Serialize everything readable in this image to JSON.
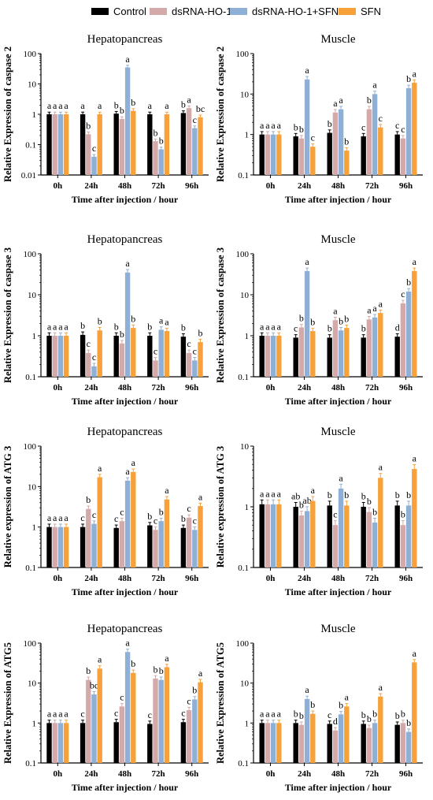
{
  "legend": {
    "items": [
      {
        "label": "Control",
        "color": "#000000"
      },
      {
        "label": "dsRNA-HO-1",
        "color": "#d4a9a9"
      },
      {
        "label": "dsRNA-HO-1+SFN",
        "color": "#8fb0d6"
      },
      {
        "label": "SFN",
        "color": "#f7a13b"
      }
    ]
  },
  "chart_data": [
    {
      "type": "bar",
      "title": "Hepatopancreas",
      "ylabel": "Relative Expression of caspase 2",
      "xlabel": "Time after injection / hour",
      "yscale": "log",
      "ylim": [
        0.01,
        100
      ],
      "yticks": [
        "0.01",
        "0.1",
        "1",
        "10",
        "100"
      ],
      "categories": [
        "0h",
        "24h",
        "48h",
        "72h",
        "96h"
      ],
      "series": [
        {
          "name": "Control",
          "values": [
            1.0,
            1.0,
            1.05,
            1.0,
            1.1
          ],
          "letters": [
            "a",
            "a",
            "b",
            "a",
            "b"
          ]
        },
        {
          "name": "dsRNA-HO-1",
          "values": [
            1.0,
            0.22,
            0.7,
            0.13,
            1.6
          ],
          "letters": [
            "a",
            "b",
            "b",
            "b",
            "a"
          ]
        },
        {
          "name": "dsRNA-HO-1+SFN",
          "values": [
            1.0,
            0.04,
            35,
            0.07,
            0.35
          ],
          "letters": [
            "a",
            "c",
            "a",
            "b",
            "c"
          ]
        },
        {
          "name": "SFN",
          "values": [
            1.0,
            1.0,
            1.3,
            1.0,
            0.8
          ],
          "letters": [
            "a",
            "a",
            "b",
            "a",
            "bc"
          ]
        }
      ]
    },
    {
      "type": "bar",
      "title": "Muscle",
      "ylabel": "Relative Expression of caspase 2",
      "xlabel": "Time after injection / hour",
      "yscale": "log",
      "ylim": [
        0.1,
        100
      ],
      "yticks": [
        "0.1",
        "1",
        "10",
        "100"
      ],
      "categories": [
        "0h",
        "24h",
        "48h",
        "72h",
        "96h"
      ],
      "series": [
        {
          "name": "Control",
          "values": [
            1.0,
            0.9,
            1.1,
            0.9,
            1.0
          ],
          "letters": [
            "a",
            "b",
            "b",
            "c",
            "c"
          ]
        },
        {
          "name": "dsRNA-HO-1",
          "values": [
            1.0,
            0.8,
            3.5,
            4.2,
            0.8
          ],
          "letters": [
            "a",
            "b",
            "a",
            "b",
            "c"
          ]
        },
        {
          "name": "dsRNA-HO-1+SFN",
          "values": [
            1.0,
            23,
            4.2,
            10,
            14
          ],
          "letters": [
            "a",
            "a",
            "a",
            "a",
            "b"
          ]
        },
        {
          "name": "SFN",
          "values": [
            1.0,
            0.5,
            0.4,
            1.5,
            19
          ],
          "letters": [
            "a",
            "c",
            "b",
            "c",
            "a"
          ]
        }
      ]
    },
    {
      "type": "bar",
      "title": "Hepatopancreas",
      "ylabel": "Relative Expression of caspase 3",
      "xlabel": "Time after injection / hour",
      "yscale": "log",
      "ylim": [
        0.1,
        100
      ],
      "yticks": [
        "0.1",
        "1",
        "10",
        "100"
      ],
      "categories": [
        "0h",
        "24h",
        "48h",
        "72h",
        "96h"
      ],
      "series": [
        {
          "name": "Control",
          "values": [
            1.0,
            1.05,
            1.0,
            1.0,
            0.95
          ],
          "letters": [
            "a",
            "b",
            "b",
            "b",
            "b"
          ]
        },
        {
          "name": "dsRNA-HO-1",
          "values": [
            1.0,
            0.38,
            0.65,
            0.25,
            0.38
          ],
          "letters": [
            "a",
            "c",
            "b",
            "c",
            "c"
          ]
        },
        {
          "name": "dsRNA-HO-1+SFN",
          "values": [
            1.0,
            0.18,
            35,
            1.4,
            0.25
          ],
          "letters": [
            "a",
            "c",
            "a",
            "a",
            "c"
          ]
        },
        {
          "name": "SFN",
          "values": [
            1.0,
            1.35,
            1.55,
            1.3,
            0.7
          ],
          "letters": [
            "a",
            "b",
            "b",
            "a",
            "b"
          ]
        }
      ]
    },
    {
      "type": "bar",
      "title": "Muscle",
      "ylabel": "Relative Expression of caspase 3",
      "xlabel": "Time after injection / hour",
      "yscale": "log",
      "ylim": [
        0.1,
        100
      ],
      "yticks": [
        "0.1",
        "1",
        "10",
        "100"
      ],
      "categories": [
        "0h",
        "24h",
        "48h",
        "72h",
        "96h"
      ],
      "series": [
        {
          "name": "Control",
          "values": [
            1.0,
            0.9,
            0.9,
            0.9,
            0.95
          ],
          "letters": [
            "a",
            "c",
            "b",
            "b",
            "d"
          ]
        },
        {
          "name": "dsRNA-HO-1",
          "values": [
            1.0,
            1.6,
            2.4,
            2.5,
            6.2
          ],
          "letters": [
            "a",
            "b",
            "a",
            "a",
            "c"
          ]
        },
        {
          "name": "dsRNA-HO-1+SFN",
          "values": [
            1.0,
            38,
            1.35,
            2.8,
            12
          ],
          "letters": [
            "a",
            "a",
            "b",
            "a",
            "b"
          ]
        },
        {
          "name": "SFN",
          "values": [
            1.0,
            1.3,
            1.55,
            3.6,
            38
          ],
          "letters": [
            "a",
            "b",
            "b",
            "a",
            "a"
          ]
        }
      ]
    },
    {
      "type": "bar",
      "title": "Hepatopancreas",
      "ylabel": "Relative expression of ATG 3",
      "xlabel": "Time after injection / hour",
      "yscale": "log",
      "ylim": [
        0.1,
        100
      ],
      "yticks": [
        "0.1",
        "1",
        "10",
        "100"
      ],
      "categories": [
        "0h",
        "24h",
        "48h",
        "72h",
        "96h"
      ],
      "series": [
        {
          "name": "Control",
          "values": [
            1.0,
            1.0,
            0.95,
            1.1,
            0.95
          ],
          "letters": [
            "a",
            "c",
            "c",
            "b",
            "b"
          ]
        },
        {
          "name": "dsRNA-HO-1",
          "values": [
            1.0,
            2.8,
            1.4,
            0.85,
            1.7
          ],
          "letters": [
            "a",
            "b",
            "c",
            "c",
            "c"
          ]
        },
        {
          "name": "dsRNA-HO-1+SFN",
          "values": [
            1.0,
            1.2,
            14,
            1.4,
            0.85
          ],
          "letters": [
            "a",
            "c",
            "a",
            "b",
            "c"
          ]
        },
        {
          "name": "SFN",
          "values": [
            1.0,
            17,
            23,
            4.8,
            3.3
          ],
          "letters": [
            "a",
            "a",
            "a",
            "a",
            "a"
          ]
        }
      ]
    },
    {
      "type": "bar",
      "title": "Muscle",
      "ylabel": "Relative expression of ATG 3",
      "xlabel": "Time after injection / hour",
      "yscale": "log",
      "ylim": [
        0.1,
        10
      ],
      "yticks": [
        "0.1",
        "1",
        "10"
      ],
      "categories": [
        "0h",
        "24h",
        "48h",
        "72h",
        "96h"
      ],
      "series": [
        {
          "name": "Control",
          "values": [
            1.1,
            1.0,
            1.05,
            1.0,
            1.05
          ],
          "letters": [
            "a",
            "ab",
            "b",
            "b",
            "b"
          ]
        },
        {
          "name": "dsRNA-HO-1",
          "values": [
            1.1,
            0.72,
            0.5,
            0.82,
            0.5
          ],
          "letters": [
            "a",
            "b",
            "c",
            "b",
            "b"
          ]
        },
        {
          "name": "dsRNA-HO-1+SFN",
          "values": [
            1.1,
            0.85,
            2.0,
            0.55,
            1.05
          ],
          "letters": [
            "a",
            "ab",
            "a",
            "b",
            "b"
          ]
        },
        {
          "name": "SFN",
          "values": [
            1.1,
            1.25,
            1.05,
            3.0,
            4.2
          ],
          "letters": [
            "a",
            "a",
            "b",
            "a",
            "a"
          ]
        }
      ]
    },
    {
      "type": "bar",
      "title": "Hepatopancreas",
      "ylabel": "Relative Expression of ATG5",
      "xlabel": "Time after injection / hour",
      "yscale": "log",
      "ylim": [
        0.1,
        100
      ],
      "yticks": [
        "0.1",
        "1",
        "10",
        "100"
      ],
      "categories": [
        "0h",
        "24h",
        "48h",
        "72h",
        "96h"
      ],
      "series": [
        {
          "name": "Control",
          "values": [
            1.0,
            1.0,
            1.05,
            0.95,
            1.05
          ],
          "letters": [
            "a",
            "c",
            "c",
            "c",
            "c"
          ]
        },
        {
          "name": "dsRNA-HO-1",
          "values": [
            1.0,
            12,
            2.6,
            13,
            2.1
          ],
          "letters": [
            "a",
            "b",
            "c",
            "b",
            "c"
          ]
        },
        {
          "name": "dsRNA-HO-1+SFN",
          "values": [
            1.0,
            5.2,
            60,
            12,
            3.9
          ],
          "letters": [
            "a",
            "bc",
            "a",
            "b",
            "b"
          ]
        },
        {
          "name": "SFN",
          "values": [
            1.0,
            23,
            18,
            25,
            10.5
          ],
          "letters": [
            "a",
            "a",
            "b",
            "a",
            "a"
          ]
        }
      ]
    },
    {
      "type": "bar",
      "title": "Muscle",
      "ylabel": "Relative Expression of ATG5",
      "xlabel": "Time after injection / hour",
      "yscale": "log",
      "ylim": [
        0.1,
        100
      ],
      "yticks": [
        "0.1",
        "1",
        "10",
        "100"
      ],
      "categories": [
        "0h",
        "24h",
        "48h",
        "72h",
        "96h"
      ],
      "series": [
        {
          "name": "Control",
          "values": [
            1.0,
            1.0,
            0.95,
            0.95,
            0.9
          ],
          "letters": [
            "a",
            "b",
            "c",
            "b",
            "b"
          ]
        },
        {
          "name": "dsRNA-HO-1",
          "values": [
            1.0,
            0.9,
            0.65,
            0.75,
            1.0
          ],
          "letters": [
            "a",
            "b",
            "d",
            "b",
            "b"
          ]
        },
        {
          "name": "dsRNA-HO-1+SFN",
          "values": [
            1.0,
            4.0,
            1.65,
            1.0,
            0.6
          ],
          "letters": [
            "a",
            "a",
            "b",
            "b",
            "b"
          ]
        },
        {
          "name": "SFN",
          "values": [
            1.0,
            1.7,
            2.6,
            4.6,
            33
          ],
          "letters": [
            "a",
            "b",
            "a",
            "a",
            "a"
          ]
        }
      ]
    }
  ]
}
